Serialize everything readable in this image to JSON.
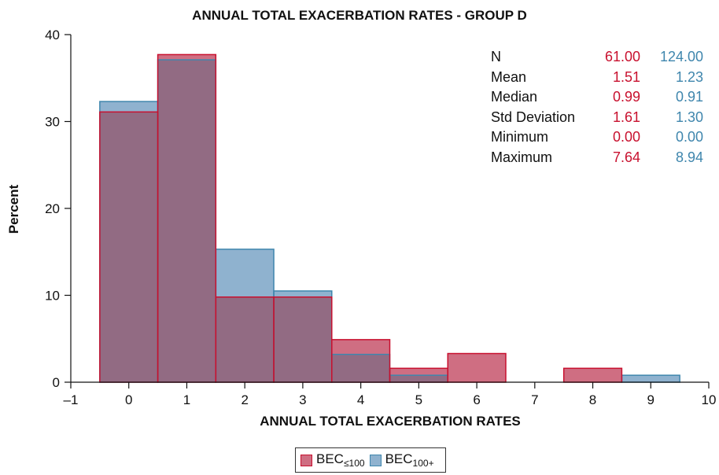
{
  "colors": {
    "bec_low": "#c8102e",
    "bec_low_fill": "#cf6e82",
    "bec_high": "#3f86ad",
    "bec_high_fill": "#8fb2cf",
    "overlap_fill": "#926b83"
  },
  "chart_data": {
    "type": "bar",
    "title": "ANNUAL TOTAL EXACERBATION RATES - GROUP D",
    "xlabel": "ANNUAL TOTAL EXACERBATION RATES",
    "ylabel": "Percent",
    "xlim": [
      -1,
      10
    ],
    "ylim": [
      0,
      40
    ],
    "x_ticks": [
      "-1",
      "0",
      "1",
      "2",
      "3",
      "4",
      "5",
      "6",
      "7",
      "8",
      "9",
      "10"
    ],
    "y_ticks": [
      "0",
      "10",
      "20",
      "30",
      "40"
    ],
    "bin_width": 1,
    "bin_centers": [
      0,
      1,
      2,
      3,
      4,
      5,
      6,
      7,
      8,
      9
    ],
    "series": [
      {
        "name": "BEC≤100",
        "values": [
          31.1,
          37.7,
          9.8,
          9.8,
          4.9,
          1.6,
          3.3,
          0,
          1.6,
          0
        ]
      },
      {
        "name": "BEC100+",
        "values": [
          32.3,
          37.1,
          15.3,
          10.5,
          3.2,
          0.8,
          0,
          0,
          0,
          0.8
        ]
      }
    ],
    "legend_placement": "bottom-center",
    "grid": false
  },
  "stats": {
    "rows": [
      {
        "label": "N",
        "v1": "61.00",
        "v2": "124.00"
      },
      {
        "label": "Mean",
        "v1": "1.51",
        "v2": "1.23"
      },
      {
        "label": "Median",
        "v1": "0.99",
        "v2": "0.91"
      },
      {
        "label": "Std Deviation",
        "v1": "1.61",
        "v2": "1.30"
      },
      {
        "label": "Minimum",
        "v1": "0.00",
        "v2": "0.00"
      },
      {
        "label": "Maximum",
        "v1": "7.64",
        "v2": "8.94"
      }
    ]
  },
  "legend": {
    "low": {
      "base": "BEC",
      "sub": "≤100"
    },
    "high": {
      "base": "BEC",
      "sub": "100+"
    }
  }
}
